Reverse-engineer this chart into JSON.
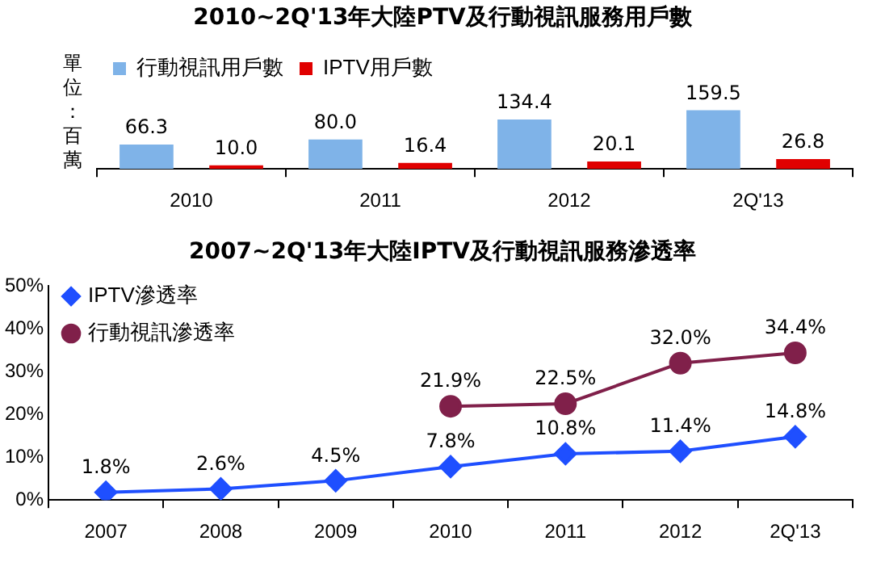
{
  "chart_data": [
    {
      "type": "bar",
      "title": "2010~2Q'13年大陸PTV及行動視訊服務用戶數",
      "ylabel": "單位：百萬",
      "categories": [
        "2010",
        "2011",
        "2012",
        "2Q'13"
      ],
      "series": [
        {
          "name": "行動視訊用戶數",
          "color": "#7fb3e8",
          "values": [
            66.3,
            80.0,
            134.4,
            159.5
          ],
          "value_labels": [
            "66.3",
            "80.0",
            "134.4",
            "159.5"
          ]
        },
        {
          "name": "IPTV用戶數",
          "color": "#e00000",
          "values": [
            10.0,
            16.4,
            20.1,
            26.8
          ],
          "value_labels": [
            "10.0",
            "16.4",
            "20.1",
            "26.8"
          ]
        }
      ],
      "legend": "top left",
      "tick_labels": "x",
      "grid": false
    },
    {
      "type": "line",
      "title": "2007~2Q'13年大陸IPTV及行動視訊服務滲透率",
      "categories": [
        "2007",
        "2008",
        "2009",
        "2010",
        "2011",
        "2012",
        "2Q'13"
      ],
      "series": [
        {
          "name": "IPTV滲透率",
          "color": "#1f4fff",
          "marker": "diamond",
          "values": [
            1.8,
            2.6,
            4.5,
            7.8,
            10.8,
            11.4,
            14.8
          ],
          "value_labels": [
            "1.8%",
            "2.6%",
            "4.5%",
            "7.8%",
            "10.8%",
            "11.4%",
            "14.8%"
          ]
        },
        {
          "name": "行動視訊滲透率",
          "color": "#80204a",
          "marker": "circle",
          "values": [
            null,
            null,
            null,
            21.9,
            22.5,
            32.0,
            34.4
          ],
          "value_labels": [
            null,
            null,
            null,
            "21.9%",
            "22.5%",
            "32.0%",
            "34.4%"
          ]
        }
      ],
      "ylim": [
        0,
        50
      ],
      "yticks": [
        {
          "value": 0,
          "label": "0%"
        },
        {
          "value": 10,
          "label": "10%"
        },
        {
          "value": 20,
          "label": "20%"
        },
        {
          "value": 30,
          "label": "30%"
        },
        {
          "value": 40,
          "label": "40%"
        },
        {
          "value": 50,
          "label": "50%"
        }
      ],
      "legend": "top left",
      "grid": false
    }
  ]
}
